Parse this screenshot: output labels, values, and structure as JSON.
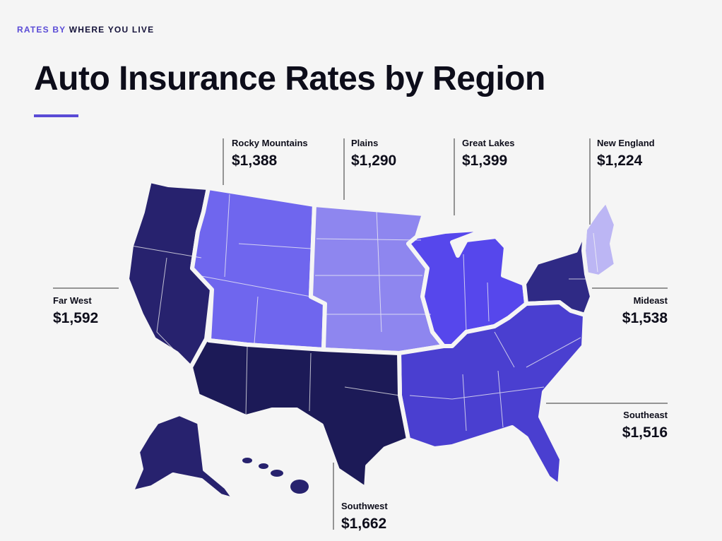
{
  "header": {
    "eyebrow_accent": "RATES BY",
    "eyebrow_rest": "WHERE YOU LIVE",
    "title": "Auto Insurance Rates by Region"
  },
  "colors": {
    "accent": "#5a4bd6",
    "southwest": "#1c1a57",
    "far_west": "#27226e",
    "mideast": "#2f2a85",
    "southeast": "#4a3fd0",
    "great_lakes": "#5647ec",
    "rocky_mountains": "#6f66ee",
    "plains": "#8e86ef",
    "new_england": "#bcb6f4"
  },
  "regions": {
    "rocky_mountains": {
      "name": "Rocky Mountains",
      "rate": "$1,388"
    },
    "plains": {
      "name": "Plains",
      "rate": "$1,290"
    },
    "great_lakes": {
      "name": "Great Lakes",
      "rate": "$1,399"
    },
    "new_england": {
      "name": "New England",
      "rate": "$1,224"
    },
    "far_west": {
      "name": "Far West",
      "rate": "$1,592"
    },
    "mideast": {
      "name": "Mideast",
      "rate": "$1,538"
    },
    "southeast": {
      "name": "Southeast",
      "rate": "$1,516"
    },
    "southwest": {
      "name": "Southwest",
      "rate": "$1,662"
    }
  }
}
